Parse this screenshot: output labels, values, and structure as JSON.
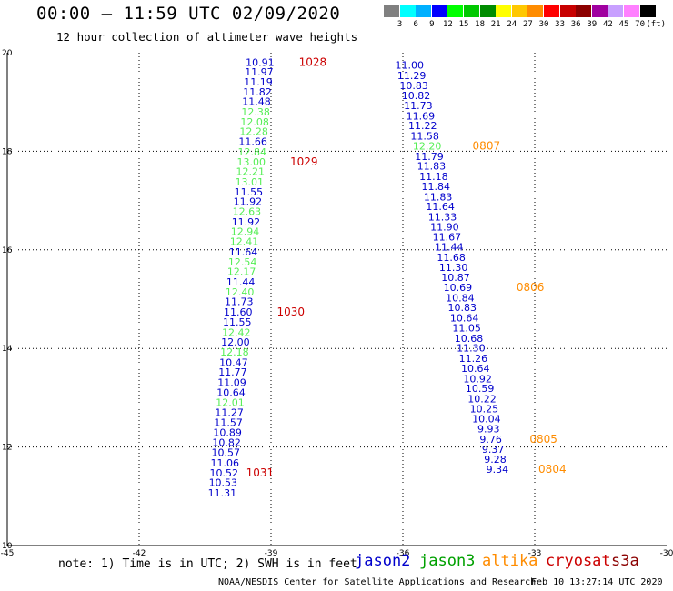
{
  "header": {
    "title": "00:00 — 11:59 UTC 02/09/2020",
    "subtitle": "12 hour collection of altimeter wave heights"
  },
  "colorbar": {
    "colors": [
      "#808080",
      "#00ffff",
      "#00b0ff",
      "#0000ff",
      "#00ff00",
      "#00c800",
      "#008c00",
      "#ffff00",
      "#ffc800",
      "#ff8c00",
      "#ff0000",
      "#c80000",
      "#8c0000",
      "#a000a0",
      "#c8a0ff",
      "#ff80ff",
      "#000000"
    ],
    "labels": [
      "3",
      "6",
      "9",
      "12",
      "15",
      "18",
      "21",
      "24",
      "27",
      "30",
      "33",
      "36",
      "39",
      "42",
      "45",
      "70",
      "(ft)"
    ]
  },
  "note": "note: 1) Time is in UTC; 2) SWH is in feet",
  "legend": [
    {
      "name": "jason2",
      "color": "#0000cc"
    },
    {
      "name": "jason3",
      "color": "#00a000"
    },
    {
      "name": "altika",
      "color": "#ff8c00"
    },
    {
      "name": "cryosat",
      "color": "#cc0000"
    },
    {
      "name": "s3a",
      "color": "#8b0000"
    }
  ],
  "credit": "NOAA/NESDIS Center for Satellite Applications and Research",
  "timestamp": "Feb 10 13:27:14 UTC 2020",
  "chart_data": {
    "type": "scatter",
    "xlim": [
      -45,
      -30
    ],
    "ylim": [
      10,
      20
    ],
    "x_ticks": [
      "-45",
      "-42",
      "-39",
      "-36",
      "-33",
      "-30"
    ],
    "y_ticks": [
      "10",
      "12",
      "14",
      "16",
      "18",
      "20"
    ],
    "grid": true,
    "series": [
      {
        "name": "cryosat",
        "color": "#0000cc",
        "points": [
          {
            "lon": -39.25,
            "lat": 19.81,
            "v": "10.91",
            "c": "b"
          },
          {
            "lon": -39.27,
            "lat": 19.61,
            "v": "11.97",
            "c": "b"
          },
          {
            "lon": -39.29,
            "lat": 19.41,
            "v": "11.19",
            "c": "b"
          },
          {
            "lon": -39.31,
            "lat": 19.21,
            "v": "11.82",
            "c": "b"
          },
          {
            "lon": -39.33,
            "lat": 19.01,
            "v": "11.48",
            "c": "b"
          },
          {
            "lon": -39.35,
            "lat": 18.8,
            "v": "12.38",
            "c": "g"
          },
          {
            "lon": -39.37,
            "lat": 18.6,
            "v": "12.08",
            "c": "g"
          },
          {
            "lon": -39.39,
            "lat": 18.4,
            "v": "12.28",
            "c": "g"
          },
          {
            "lon": -39.41,
            "lat": 18.2,
            "v": "11.66",
            "c": "b"
          },
          {
            "lon": -39.43,
            "lat": 17.99,
            "v": "12.84",
            "c": "g"
          },
          {
            "lon": -39.45,
            "lat": 17.79,
            "v": "13.00",
            "c": "g"
          },
          {
            "lon": -39.47,
            "lat": 17.59,
            "v": "12.21",
            "c": "g"
          },
          {
            "lon": -39.49,
            "lat": 17.38,
            "v": "13.01",
            "c": "g"
          },
          {
            "lon": -39.51,
            "lat": 17.18,
            "v": "11.55",
            "c": "b"
          },
          {
            "lon": -39.53,
            "lat": 16.98,
            "v": "11.92",
            "c": "b"
          },
          {
            "lon": -39.55,
            "lat": 16.78,
            "v": "12.63",
            "c": "g"
          },
          {
            "lon": -39.57,
            "lat": 16.57,
            "v": "11.92",
            "c": "b"
          },
          {
            "lon": -39.59,
            "lat": 16.37,
            "v": "12.94",
            "c": "g"
          },
          {
            "lon": -39.61,
            "lat": 16.17,
            "v": "12.41",
            "c": "g"
          },
          {
            "lon": -39.63,
            "lat": 15.96,
            "v": "11.64",
            "c": "b"
          },
          {
            "lon": -39.65,
            "lat": 15.76,
            "v": "12.54",
            "c": "g"
          },
          {
            "lon": -39.67,
            "lat": 15.56,
            "v": "12.17",
            "c": "g"
          },
          {
            "lon": -39.69,
            "lat": 15.35,
            "v": "11.44",
            "c": "b"
          },
          {
            "lon": -39.71,
            "lat": 15.15,
            "v": "12.40",
            "c": "g"
          },
          {
            "lon": -39.73,
            "lat": 14.95,
            "v": "11.73",
            "c": "b"
          },
          {
            "lon": -39.75,
            "lat": 14.74,
            "v": "11.60",
            "c": "b"
          },
          {
            "lon": -39.77,
            "lat": 14.54,
            "v": "11.55",
            "c": "b"
          },
          {
            "lon": -39.79,
            "lat": 14.33,
            "v": "12.42",
            "c": "g"
          },
          {
            "lon": -39.81,
            "lat": 14.13,
            "v": "12.00",
            "c": "b"
          },
          {
            "lon": -39.83,
            "lat": 13.93,
            "v": "12.18",
            "c": "g"
          },
          {
            "lon": -39.85,
            "lat": 13.72,
            "v": "10.47",
            "c": "b"
          },
          {
            "lon": -39.87,
            "lat": 13.52,
            "v": "11.77",
            "c": "b"
          },
          {
            "lon": -39.89,
            "lat": 13.31,
            "v": "11.09",
            "c": "b"
          },
          {
            "lon": -39.91,
            "lat": 13.11,
            "v": "10.64",
            "c": "b"
          },
          {
            "lon": -39.93,
            "lat": 12.91,
            "v": "12.01",
            "c": "g"
          },
          {
            "lon": -39.95,
            "lat": 12.7,
            "v": "11.27",
            "c": "b"
          },
          {
            "lon": -39.97,
            "lat": 12.5,
            "v": "11.57",
            "c": "b"
          },
          {
            "lon": -39.99,
            "lat": 12.3,
            "v": "10.89",
            "c": "b"
          },
          {
            "lon": -40.01,
            "lat": 12.09,
            "v": "10.82",
            "c": "b"
          },
          {
            "lon": -40.03,
            "lat": 11.89,
            "v": "10.57",
            "c": "b"
          },
          {
            "lon": -40.05,
            "lat": 11.68,
            "v": "11.06",
            "c": "b"
          },
          {
            "lon": -40.07,
            "lat": 11.48,
            "v": "10.52",
            "c": "b"
          },
          {
            "lon": -40.09,
            "lat": 11.28,
            "v": "10.53",
            "c": "b"
          },
          {
            "lon": -40.11,
            "lat": 11.07,
            "v": "11.31",
            "c": "b"
          }
        ]
      },
      {
        "name": "altika",
        "color": "#0000cc",
        "points": [
          {
            "lon": -35.85,
            "lat": 19.75,
            "v": "11.00",
            "c": "b"
          },
          {
            "lon": -35.8,
            "lat": 19.54,
            "v": "11.29",
            "c": "b"
          },
          {
            "lon": -35.75,
            "lat": 19.34,
            "v": "10.83",
            "c": "b"
          },
          {
            "lon": -35.7,
            "lat": 19.13,
            "v": "10.82",
            "c": "b"
          },
          {
            "lon": -35.65,
            "lat": 18.93,
            "v": "11.73",
            "c": "b"
          },
          {
            "lon": -35.6,
            "lat": 18.72,
            "v": "11.69",
            "c": "b"
          },
          {
            "lon": -35.55,
            "lat": 18.52,
            "v": "11.22",
            "c": "b"
          },
          {
            "lon": -35.5,
            "lat": 18.31,
            "v": "11.58",
            "c": "b"
          },
          {
            "lon": -35.45,
            "lat": 18.11,
            "v": "12.20",
            "c": "g"
          },
          {
            "lon": -35.4,
            "lat": 17.9,
            "v": "11.79",
            "c": "b"
          },
          {
            "lon": -35.35,
            "lat": 17.7,
            "v": "11.83",
            "c": "b"
          },
          {
            "lon": -35.3,
            "lat": 17.49,
            "v": "11.18",
            "c": "b"
          },
          {
            "lon": -35.25,
            "lat": 17.29,
            "v": "11.84",
            "c": "b"
          },
          {
            "lon": -35.2,
            "lat": 17.08,
            "v": "11.83",
            "c": "b"
          },
          {
            "lon": -35.15,
            "lat": 16.88,
            "v": "11.64",
            "c": "b"
          },
          {
            "lon": -35.1,
            "lat": 16.67,
            "v": "11.33",
            "c": "b"
          },
          {
            "lon": -35.05,
            "lat": 16.47,
            "v": "11.90",
            "c": "b"
          },
          {
            "lon": -35.0,
            "lat": 16.26,
            "v": "11.67",
            "c": "b"
          },
          {
            "lon": -34.95,
            "lat": 16.06,
            "v": "11.44",
            "c": "b"
          },
          {
            "lon": -34.9,
            "lat": 15.85,
            "v": "11.68",
            "c": "b"
          },
          {
            "lon": -34.85,
            "lat": 15.65,
            "v": "11.30",
            "c": "b"
          },
          {
            "lon": -34.8,
            "lat": 15.44,
            "v": "10.87",
            "c": "b"
          },
          {
            "lon": -34.75,
            "lat": 15.24,
            "v": "10.69",
            "c": "b"
          },
          {
            "lon": -34.7,
            "lat": 15.03,
            "v": "10.84",
            "c": "b"
          },
          {
            "lon": -34.65,
            "lat": 14.83,
            "v": "10.83",
            "c": "b"
          },
          {
            "lon": -34.6,
            "lat": 14.62,
            "v": "10.64",
            "c": "b"
          },
          {
            "lon": -34.55,
            "lat": 14.42,
            "v": "11.05",
            "c": "b"
          },
          {
            "lon": -34.5,
            "lat": 14.21,
            "v": "10.68",
            "c": "b"
          },
          {
            "lon": -34.45,
            "lat": 14.01,
            "v": "11.30",
            "c": "b"
          },
          {
            "lon": -34.4,
            "lat": 13.8,
            "v": "11.26",
            "c": "b"
          },
          {
            "lon": -34.35,
            "lat": 13.6,
            "v": "10.64",
            "c": "b"
          },
          {
            "lon": -34.3,
            "lat": 13.39,
            "v": "10.92",
            "c": "b"
          },
          {
            "lon": -34.25,
            "lat": 13.19,
            "v": "10.59",
            "c": "b"
          },
          {
            "lon": -34.2,
            "lat": 12.98,
            "v": "10.22",
            "c": "b"
          },
          {
            "lon": -34.15,
            "lat": 12.78,
            "v": "10.25",
            "c": "b"
          },
          {
            "lon": -34.1,
            "lat": 12.57,
            "v": "10.04",
            "c": "b"
          },
          {
            "lon": -34.05,
            "lat": 12.37,
            "v": "9.93",
            "c": "b"
          },
          {
            "lon": -34.0,
            "lat": 12.16,
            "v": "9.76",
            "c": "b"
          },
          {
            "lon": -33.95,
            "lat": 11.96,
            "v": "9.37",
            "c": "b"
          },
          {
            "lon": -33.9,
            "lat": 11.75,
            "v": "9.28",
            "c": "b"
          },
          {
            "lon": -33.85,
            "lat": 11.55,
            "v": "9.34",
            "c": "b"
          }
        ]
      }
    ],
    "time_labels": [
      {
        "text": "1028",
        "color": "#cc0000",
        "lon": -38.05,
        "lat": 19.81
      },
      {
        "text": "1029",
        "color": "#cc0000",
        "lon": -38.25,
        "lat": 17.79
      },
      {
        "text": "1030",
        "color": "#cc0000",
        "lon": -38.55,
        "lat": 14.74
      },
      {
        "text": "1031",
        "color": "#cc0000",
        "lon": -39.25,
        "lat": 11.48
      },
      {
        "text": "0807",
        "color": "#ff8c00",
        "lon": -34.1,
        "lat": 18.11
      },
      {
        "text": "0806",
        "color": "#ff8c00",
        "lon": -33.1,
        "lat": 15.24
      },
      {
        "text": "0805",
        "color": "#ff8c00",
        "lon": -32.8,
        "lat": 12.16
      },
      {
        "text": "0804",
        "color": "#ff8c00",
        "lon": -32.6,
        "lat": 11.55
      }
    ]
  }
}
